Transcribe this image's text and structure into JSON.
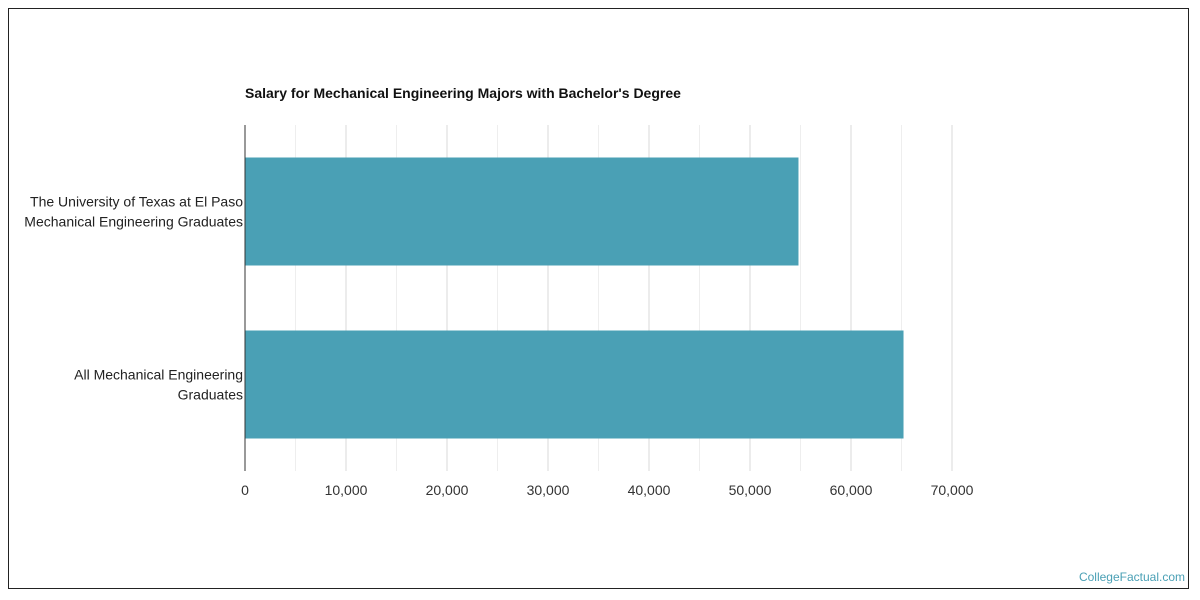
{
  "chart_data": {
    "type": "bar",
    "orientation": "horizontal",
    "title": "Salary for Mechanical Engineering Majors with Bachelor's Degree",
    "categories": [
      [
        "The University of Texas at El Paso",
        "Mechanical Engineering Graduates"
      ],
      [
        "All Mechanical Engineering",
        "Graduates"
      ]
    ],
    "values": [
      54800,
      65200
    ],
    "xlim": [
      0,
      70000
    ],
    "xticks": [
      0,
      10000,
      20000,
      30000,
      40000,
      50000,
      60000,
      70000
    ],
    "xtick_labels": [
      "0",
      "10,000",
      "20,000",
      "30,000",
      "40,000",
      "50,000",
      "60,000",
      "70,000"
    ],
    "grid": true,
    "legend": "none",
    "bar_color": "#4aa0b5"
  },
  "footer": {
    "watermark": "CollegeFactual.com"
  }
}
